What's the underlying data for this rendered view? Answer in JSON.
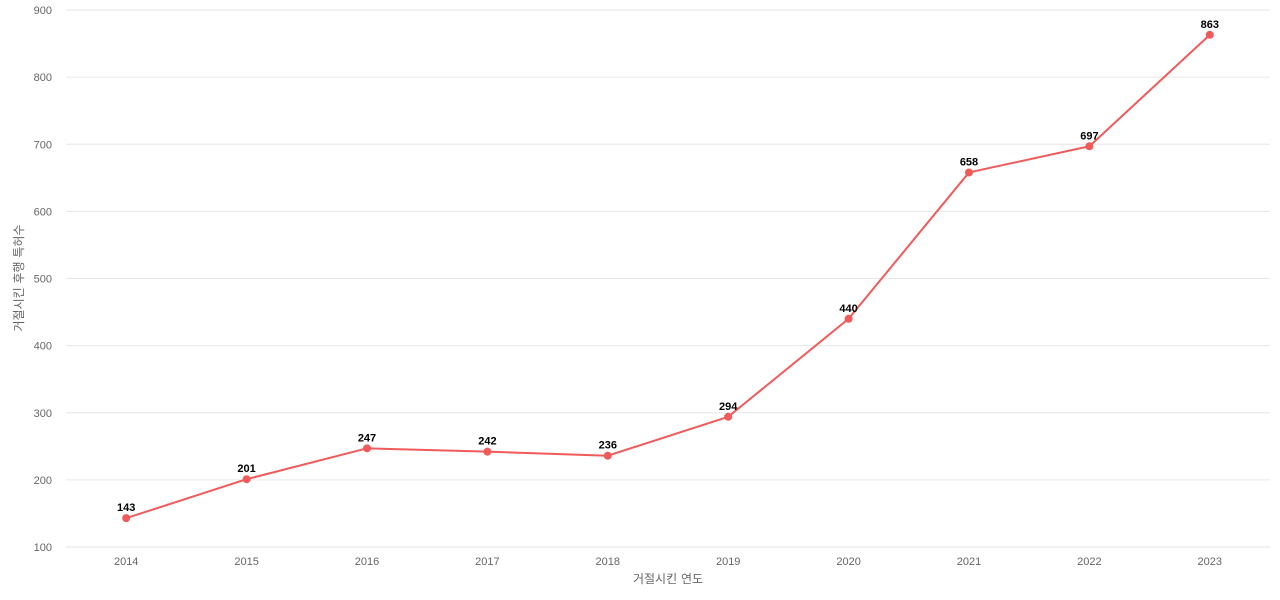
{
  "chart_data": {
    "type": "line",
    "title": "",
    "xlabel": "거절시킨 연도",
    "ylabel": "거절시킨 후행 특허수",
    "categories": [
      "2014",
      "2015",
      "2016",
      "2017",
      "2018",
      "2019",
      "2020",
      "2021",
      "2022",
      "2023"
    ],
    "series": [
      {
        "values": [
          143,
          201,
          247,
          242,
          236,
          294,
          440,
          658,
          697,
          863
        ]
      }
    ],
    "ylim": [
      100,
      900
    ],
    "yticks": [
      100,
      200,
      300,
      400,
      500,
      600,
      700,
      800,
      900
    ],
    "grid": true,
    "legend": "none",
    "line_color": "#f05a5a"
  }
}
